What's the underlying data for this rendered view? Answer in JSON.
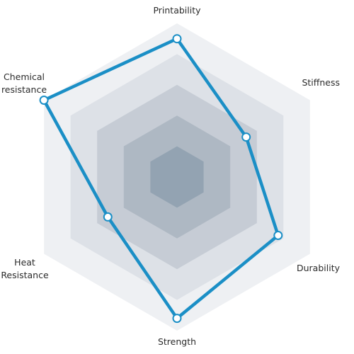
{
  "chart_data": {
    "type": "radar",
    "axes": [
      "Printability",
      "Stiffness",
      "Durability",
      "Strength",
      "Heat Resistance",
      "Chemical resistance"
    ],
    "axis_label_lines": [
      [
        "Printability"
      ],
      [
        "Stiffness"
      ],
      [
        "Durability"
      ],
      [
        "Strength"
      ],
      [
        "Heat",
        "Resistance"
      ],
      [
        "Chemical",
        "resistance"
      ]
    ],
    "range": [
      0,
      5
    ],
    "rings": 5,
    "values": [
      4.5,
      2.6,
      3.8,
      4.6,
      2.6,
      5.0
    ],
    "colors": {
      "line": "#1b8fc6",
      "marker_fill": "#ffffff",
      "rings": [
        "#eef0f3",
        "#dde1e7",
        "#c6ccd5",
        "#aeb8c3",
        "#93a3b2"
      ]
    }
  }
}
